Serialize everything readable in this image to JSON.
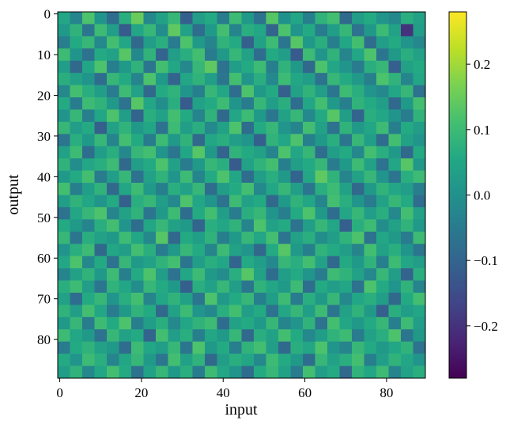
{
  "chart_data": {
    "type": "heatmap",
    "x_label": "input",
    "y_label": "output",
    "xlim": [
      -0.5,
      89.5
    ],
    "ylim": [
      89.5,
      -0.5
    ],
    "xticks": [
      0,
      20,
      40,
      60,
      80
    ],
    "yticks": [
      0,
      10,
      20,
      30,
      40,
      50,
      60,
      70,
      80
    ],
    "colormap": "viridis",
    "clim": [
      -0.28,
      0.28
    ],
    "cbar_ticks": [
      {
        "value": -0.2,
        "label": "−0.2"
      },
      {
        "value": -0.1,
        "label": "−0.1"
      },
      {
        "value": 0,
        "label": "0.0"
      },
      0.1,
      0.2
    ],
    "z": [
      [
        0.05,
        -0.03,
        0.12,
        0.01,
        -0.08,
        0.07,
        0.15,
        -0.02,
        0.04,
        0.09,
        -0.11,
        0.03,
        0.06,
        -0.05,
        0.1,
        0.02,
        -0.07,
        0.13,
        0.0,
        0.05,
        -0.04,
        0.08,
        0.11,
        -0.09,
        0.03,
        0.06,
        0.01,
        -0.02,
        0.07,
        0.04
      ],
      [
        0.02,
        0.08,
        -0.06,
        0.1,
        0.03,
        -0.12,
        0.05,
        0.09,
        -0.01,
        0.14,
        0.04,
        -0.08,
        0.02,
        0.11,
        -0.03,
        0.07,
        0.05,
        -0.1,
        0.12,
        0.01,
        0.06,
        -0.05,
        0.03,
        0.09,
        -0.07,
        0.02,
        0.1,
        0.04,
        -0.2,
        0.03
      ],
      [
        -0.04,
        0.06,
        0.09,
        -0.02,
        0.11,
        0.05,
        -0.09,
        0.03,
        0.07,
        -0.05,
        0.12,
        0.02,
        -0.03,
        0.08,
        0.06,
        -0.11,
        0.04,
        0.1,
        -0.06,
        0.13,
        0.02,
        0.07,
        -0.04,
        0.05,
        0.11,
        -0.08,
        0.03,
        0.06,
        0.01,
        -0.02
      ],
      [
        0.1,
        0.01,
        -0.07,
        0.06,
        0.04,
        0.13,
        -0.02,
        0.08,
        -0.1,
        0.03,
        0.07,
        0.11,
        -0.05,
        0.02,
        0.09,
        0.04,
        -0.08,
        0.06,
        0.03,
        -0.12,
        0.1,
        0.01,
        0.08,
        -0.03,
        0.05,
        0.12,
        -0.06,
        0.02,
        0.07,
        0.04
      ],
      [
        0.03,
        -0.09,
        0.05,
        0.12,
        -0.04,
        0.02,
        0.08,
        -0.06,
        0.11,
        0.05,
        -0.02,
        0.09,
        0.14,
        -0.07,
        0.03,
        0.06,
        0.1,
        -0.04,
        0.08,
        0.02,
        -0.09,
        0.12,
        0.05,
        0.01,
        -0.05,
        0.07,
        0.09,
        -0.11,
        0.04,
        0.06
      ],
      [
        0.07,
        0.04,
        0.01,
        -0.08,
        0.09,
        0.06,
        -0.03,
        0.12,
        0.02,
        -0.1,
        0.05,
        0.08,
        0.03,
        -0.06,
        0.11,
        0.01,
        0.07,
        -0.02,
        0.1,
        0.05,
        0.03,
        -0.07,
        0.09,
        0.06,
        0.02,
        -0.04,
        0.12,
        0.08,
        -0.03,
        0.05
      ],
      [
        -0.02,
        0.11,
        0.07,
        0.03,
        -0.05,
        0.1,
        0.04,
        -0.09,
        0.06,
        0.08,
        0.01,
        -0.04,
        0.09,
        0.05,
        -0.08,
        0.12,
        0.02,
        0.06,
        -0.11,
        0.04,
        0.08,
        0.03,
        -0.06,
        0.1,
        0.07,
        0.01,
        -0.02,
        0.05,
        0.09,
        -0.07
      ],
      [
        0.06,
        -0.05,
        0.1,
        0.08,
        0.02,
        -0.07,
        0.13,
        0.05,
        -0.01,
        0.07,
        -0.12,
        0.04,
        0.06,
        0.1,
        0.01,
        -0.05,
        0.09,
        0.03,
        0.07,
        -0.08,
        0.05,
        0.11,
        0.02,
        -0.04,
        0.08,
        0.06,
        0.03,
        -0.09,
        0.02,
        0.11
      ],
      [
        0.01,
        0.09,
        -0.04,
        0.05,
        0.12,
        0.03,
        -0.1,
        0.07,
        0.04,
        0.11,
        0.06,
        -0.03,
        0.08,
        -0.09,
        0.05,
        0.1,
        0.02,
        -0.06,
        0.04,
        0.09,
        -0.02,
        0.06,
        0.13,
        0.03,
        -0.1,
        0.07,
        0.05,
        0.01,
        -0.05,
        0.08
      ],
      [
        0.09,
        0.03,
        0.06,
        -0.11,
        0.04,
        0.08,
        0.02,
        0.05,
        -0.07,
        0.1,
        0.03,
        0.07,
        -0.02,
        0.04,
        0.12,
        -0.08,
        0.06,
        0.09,
        0.01,
        -0.03,
        0.11,
        0.04,
        -0.07,
        0.08,
        0.02,
        0.05,
        0.1,
        -0.04,
        0.06,
        0.03
      ],
      [
        -0.06,
        0.07,
        0.02,
        0.09,
        -0.03,
        0.11,
        0.06,
        -0.05,
        0.1,
        0.02,
        0.08,
        -0.09,
        0.05,
        0.07,
        0.03,
        0.01,
        -0.11,
        0.08,
        0.05,
        0.12,
        -0.04,
        0.02,
        0.07,
        -0.06,
        0.09,
        0.03,
        -0.08,
        0.11,
        0.04,
        0.01
      ],
      [
        0.04,
        0.1,
        -0.08,
        0.03,
        0.07,
        -0.02,
        0.09,
        0.11,
        0.01,
        -0.06,
        0.05,
        0.13,
        0.02,
        -0.1,
        0.08,
        0.06,
        0.04,
        -0.03,
        0.12,
        0.05,
        0.09,
        -0.08,
        0.03,
        0.06,
        -0.02,
        0.11,
        0.07,
        0.02,
        -0.09,
        0.06
      ],
      [
        0.08,
        -0.01,
        0.05,
        0.07,
        0.1,
        -0.09,
        0.03,
        0.06,
        0.12,
        0.04,
        -0.05,
        0.02,
        0.09,
        0.07,
        -0.12,
        0.04,
        0.08,
        0.11,
        -0.04,
        0.03,
        0.06,
        0.09,
        -0.05,
        0.02,
        0.1,
        0.04,
        -0.07,
        0.05,
        0.13,
        0.02
      ],
      [
        0.02,
        0.06,
        0.11,
        -0.05,
        0.03,
        0.09,
        -0.07,
        0.04,
        0.08,
        0.01,
        0.1,
        -0.03,
        0.06,
        0.12,
        0.05,
        -0.08,
        0.03,
        0.07,
        0.02,
        -0.1,
        0.05,
        0.14,
        0.08,
        -0.03,
        0.04,
        0.09,
        0.01,
        -0.06,
        0.07,
        0.1
      ],
      [
        0.11,
        -0.04,
        0.03,
        0.08,
        -0.09,
        0.05,
        0.1,
        0.02,
        -0.04,
        0.07,
        0.04,
        0.09,
        -0.08,
        0.03,
        0.06,
        0.11,
        -0.02,
        0.05,
        0.09,
        0.03,
        -0.06,
        0.07,
        0.1,
        0.04,
        -0.09,
        0.02,
        0.08,
        0.05,
        0.03,
        -0.04
      ],
      [
        0.03,
        0.08,
        0.05,
        0.01,
        0.06,
        -0.11,
        0.07,
        0.09,
        0.03,
        -0.02,
        0.12,
        0.05,
        0.01,
        -0.07,
        0.1,
        0.04,
        0.06,
        -0.09,
        0.02,
        0.08,
        0.05,
        -0.03,
        0.11,
        0.07,
        0.01,
        -0.05,
        0.04,
        0.09,
        0.06,
        -0.08
      ],
      [
        -0.07,
        0.05,
        0.09,
        0.12,
        -0.03,
        0.04,
        0.08,
        -0.06,
        0.02,
        0.1,
        -0.08,
        0.06,
        0.11,
        0.03,
        -0.05,
        0.07,
        0.09,
        0.01,
        -0.04,
        0.06,
        0.12,
        0.02,
        -0.08,
        0.05,
        0.09,
        0.03,
        0.07,
        -0.02,
        0.11,
        0.04
      ],
      [
        0.06,
        0.02,
        -0.03,
        0.07,
        0.11,
        0.01,
        -0.08,
        0.05,
        0.09,
        0.04,
        0.02,
        -0.1,
        0.07,
        0.05,
        0.08,
        -0.03,
        0.12,
        0.04,
        0.06,
        -0.07,
        0.03,
        0.09,
        0.05,
        -0.11,
        0.07,
        0.1,
        -0.01,
        0.04,
        0.08,
        0.02
      ],
      [
        0.09,
        -0.06,
        0.07,
        0.04,
        0.02,
        0.1,
        0.05,
        -0.02,
        0.13,
        -0.09,
        0.06,
        0.03,
        0.08,
        -0.04,
        0.02,
        0.09,
        0.05,
        0.11,
        -0.06,
        0.04,
        0.07,
        -0.01,
        0.03,
        0.08,
        0.12,
        -0.07,
        0.05,
        0.02,
        -0.05,
        0.1
      ],
      [
        0.01,
        0.07,
        0.1,
        -0.09,
        0.05,
        0.03,
        0.11,
        0.07,
        -0.05,
        0.02,
        0.09,
        0.06,
        -0.03,
        0.1,
        0.04,
        0.01,
        -0.09,
        0.06,
        0.13,
        0.02,
        -0.04,
        0.08,
        0.06,
        0.03,
        -0.03,
        0.11,
        0.04,
        0.07,
        0.01,
        -0.06
      ],
      [
        0.05,
        0.12,
        -0.02,
        0.06,
        -0.07,
        0.09,
        0.02,
        0.04,
        0.08,
        0.11,
        -0.06,
        0.03,
        0.07,
        0.05,
        -0.1,
        0.06,
        0.03,
        -0.02,
        0.09,
        0.07,
        0.11,
        0.04,
        -0.09,
        0.06,
        0.02,
        0.08,
        -0.04,
        0.1,
        0.05,
        0.03
      ],
      [
        -0.03,
        0.04,
        0.08,
        0.02,
        0.1,
        -0.04,
        0.06,
        0.12,
        0.03,
        -0.07,
        0.05,
        0.1,
        0.02,
        -0.01,
        0.07,
        0.13,
        0.04,
        -0.08,
        0.03,
        0.06,
        0.01,
        -0.05,
        0.1,
        0.08,
        0.04,
        -0.02,
        0.09,
        0.03,
        -0.1,
        0.07
      ],
      [
        0.07,
        0.1,
        0.03,
        -0.06,
        0.08,
        0.05,
        -0.01,
        0.09,
        0.06,
        0.02,
        -0.11,
        0.07,
        0.04,
        0.09,
        0.03,
        -0.06,
        0.08,
        0.05,
        0.02,
        0.1,
        -0.08,
        0.06,
        0.03,
        0.05,
        -0.07,
        0.12,
        0.06,
        0.01,
        0.08,
        -0.03
      ],
      [
        0.04,
        -0.08,
        0.06,
        0.09,
        0.01,
        0.07,
        0.11,
        -0.03,
        0.05,
        0.08,
        0.04,
        -0.06,
        0.12,
        0.02,
        0.06,
        0.09,
        -0.04,
        0.03,
        0.1,
        -0.05,
        0.07,
        0.02,
        0.09,
        -0.02,
        0.05,
        0.07,
        0.03,
        -0.09,
        0.06,
        0.11
      ],
      [
        0.08,
        0.03,
        0.11,
        0.05,
        -0.05,
        0.02,
        0.08,
        0.06,
        -0.09,
        0.04,
        0.1,
        0.01,
        -0.02,
        0.07,
        0.11,
        0.03,
        0.06,
        -0.07,
        0.05,
        0.09,
        0.03,
        0.1,
        -0.06,
        0.04,
        0.08,
        0.02,
        -0.11,
        0.07,
        0.03,
        0.05
      ],
      [
        0.02,
        0.09,
        -0.05,
        0.1,
        0.06,
        0.12,
        -0.04,
        0.03,
        0.07,
        -0.02,
        0.05,
        0.08,
        0.1,
        -0.08,
        0.04,
        0.06,
        0.02,
        0.09,
        -0.03,
        0.01,
        0.08,
        -0.07,
        0.11,
        0.05,
        0.02,
        0.06,
        0.09,
        -0.04,
        0.1,
        0.03
      ],
      [
        0.1,
        0.05,
        0.02,
        -0.07,
        0.09,
        0.04,
        0.06,
        -0.1,
        0.11,
        0.03,
        0.07,
        -0.04,
        0.05,
        0.02,
        0.09,
        -0.09,
        0.07,
        0.04,
        0.11,
        0.06,
        -0.02,
        0.03,
        0.08,
        0.1,
        -0.05,
        0.04,
        0.07,
        0.12,
        -0.06,
        0.02
      ],
      [
        -0.05,
        0.06,
        0.08,
        0.04,
        0.02,
        -0.08,
        0.1,
        0.05,
        0.03,
        0.09,
        -0.06,
        0.12,
        0.02,
        0.06,
        -0.04,
        0.08,
        0.11,
        0.03,
        -0.09,
        0.07,
        0.05,
        0.12,
        0.01,
        -0.03,
        0.09,
        0.06,
        0.02,
        0.05,
        0.08,
        -0.07
      ],
      [
        0.06,
        0.01,
        0.1,
        0.07,
        -0.03,
        0.05,
        0.09,
        0.02,
        -0.06,
        0.11,
        0.04,
        0.08,
        -0.09,
        0.03,
        0.07,
        0.05,
        -0.02,
        0.1,
        0.06,
        0.02,
        -0.08,
        0.09,
        0.04,
        0.07,
        0.11,
        -0.04,
        0.03,
        0.08,
        0.05,
        0.01
      ],
      [
        0.03,
        0.08,
        -0.02,
        0.05,
        0.11,
        0.06,
        -0.07,
        0.04,
        0.09,
        0.02,
        0.07,
        -0.05,
        0.1,
        0.05,
        0.01,
        -0.08,
        0.06,
        0.09,
        0.04,
        -0.05,
        0.11,
        0.03,
        0.06,
        -0.09,
        0.08,
        0.05,
        0.1,
        -0.03,
        0.04,
        0.07
      ]
    ]
  }
}
